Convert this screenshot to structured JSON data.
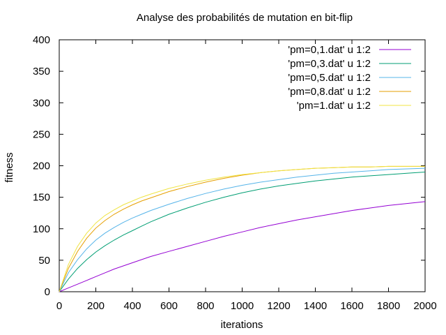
{
  "chart_data": {
    "type": "line",
    "title": "Analyse des probabilités de mutation en bit-flip",
    "xlabel": "iterations",
    "ylabel": "fitness",
    "xlim": [
      0,
      2000
    ],
    "ylim": [
      0,
      400
    ],
    "xticks": [
      0,
      200,
      400,
      600,
      800,
      1000,
      1200,
      1400,
      1600,
      1800,
      2000
    ],
    "yticks": [
      0,
      50,
      100,
      150,
      200,
      250,
      300,
      350,
      400
    ],
    "grid": false,
    "legend_position": "top-right",
    "x": [
      0,
      50,
      100,
      150,
      200,
      250,
      300,
      350,
      400,
      450,
      500,
      600,
      700,
      800,
      900,
      1000,
      1100,
      1200,
      1300,
      1400,
      1500,
      1600,
      1700,
      1800,
      1900,
      2000
    ],
    "series": [
      {
        "name": "'pm=0,1.dat' u 1:2",
        "color": "#9400d3",
        "values": [
          0,
          6,
          12,
          18,
          24,
          30,
          36,
          41,
          46,
          51,
          56,
          64,
          72,
          80,
          88,
          95,
          102,
          108,
          114,
          119,
          124,
          129,
          133,
          137,
          140,
          143
        ]
      },
      {
        "name": "'pm=0,3.dat' u 1:2",
        "color": "#009e73",
        "values": [
          0,
          20,
          37,
          51,
          63,
          73,
          82,
          90,
          97,
          104,
          111,
          123,
          133,
          142,
          150,
          157,
          163,
          168,
          172,
          176,
          179,
          182,
          184,
          186,
          188,
          190
        ]
      },
      {
        "name": "'pm=0,5.dat' u 1:2",
        "color": "#56b4e9",
        "values": [
          0,
          30,
          51,
          68,
          82,
          93,
          102,
          110,
          117,
          123,
          129,
          139,
          148,
          156,
          163,
          169,
          174,
          178,
          182,
          185,
          188,
          190,
          192,
          194,
          195,
          196
        ]
      },
      {
        "name": "'pm=0,8.dat' u 1:2",
        "color": "#e69f00",
        "values": [
          0,
          37,
          64,
          85,
          101,
          113,
          123,
          131,
          138,
          144,
          149,
          159,
          167,
          174,
          180,
          185,
          189,
          192,
          194,
          196,
          197,
          198,
          198,
          199,
          199,
          199
        ]
      },
      {
        "name": "'pm=1.dat' u 1:2",
        "color": "#f0e442",
        "values": [
          0,
          43,
          72,
          93,
          109,
          121,
          130,
          138,
          144,
          150,
          155,
          164,
          171,
          177,
          182,
          186,
          189,
          192,
          194,
          196,
          197,
          198,
          198,
          199,
          199,
          199
        ]
      }
    ]
  }
}
